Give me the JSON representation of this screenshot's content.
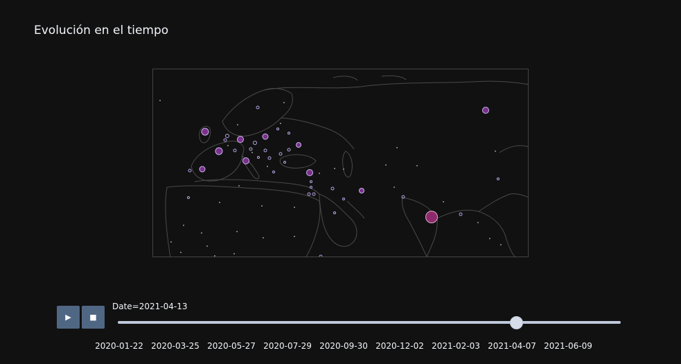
{
  "title": "Evolución en el tiempo",
  "slider": {
    "current_label": "Date=2021-04-13",
    "current_date": "2021-04-13",
    "ticks": [
      "2020-01-22",
      "2020-03-25",
      "2020-05-27",
      "2020-07-29",
      "2020-09-30",
      "2020-12-02",
      "2021-02-03",
      "2021-04-07",
      "2021-06-09"
    ]
  },
  "controls": {
    "play_icon": "play-icon",
    "stop_icon": "stop-icon"
  },
  "colors": {
    "background": "#111111",
    "land_outline": "#4a4a4a",
    "marker_large": "#7b2f8a",
    "marker_small_stroke": "#b9a7e6",
    "marker_highlight": "#8e2a6b",
    "button": "#506784",
    "rail": "#bec8d9"
  }
}
